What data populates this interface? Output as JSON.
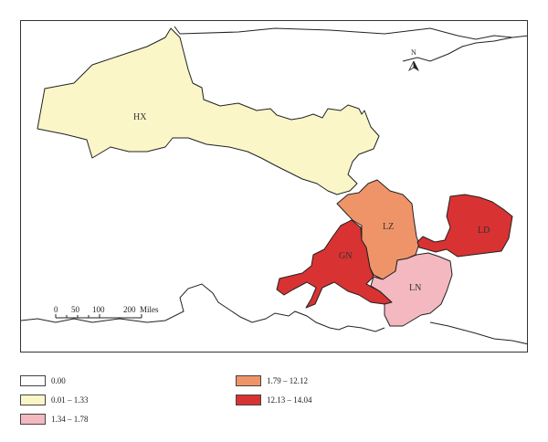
{
  "map": {
    "north_label": "N",
    "scale": {
      "ticks": [
        "0",
        "50",
        "100",
        "200"
      ],
      "unit": "Miles"
    },
    "regions": [
      {
        "id": "HX",
        "label": "HX",
        "color": "#fbf6c8"
      },
      {
        "id": "LZ",
        "label": "LZ",
        "color": "#ef9469"
      },
      {
        "id": "GN",
        "label": "GN",
        "color": "#d93232"
      },
      {
        "id": "LD",
        "label": "LD",
        "color": "#d93232"
      },
      {
        "id": "LN",
        "label": "LN",
        "color": "#f4b8c1"
      }
    ]
  },
  "legend": {
    "items": [
      {
        "label": "0.00",
        "color": "#ffffff"
      },
      {
        "label": "0.01 – 1.33",
        "color": "#fbf6c8"
      },
      {
        "label": "1.34 – 1.78",
        "color": "#f4b8c1"
      },
      {
        "label": "1.79 – 12.12",
        "color": "#ef9469"
      },
      {
        "label": "12.13 – 14.04",
        "color": "#d93232"
      }
    ]
  }
}
